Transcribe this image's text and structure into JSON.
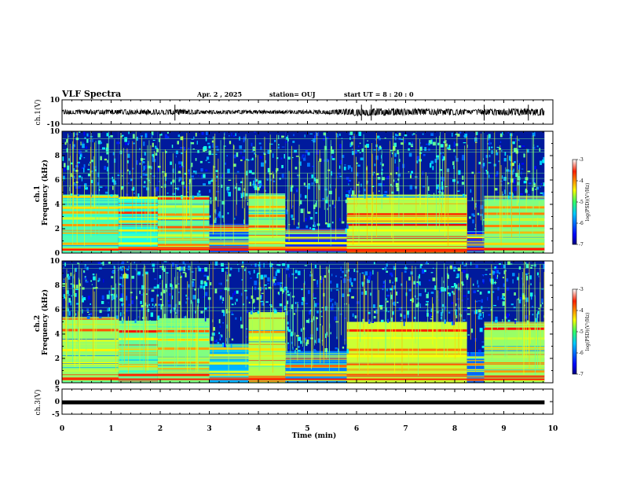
{
  "header": {
    "title": "VLF Spectra",
    "date": "Apr. 2 , 2025",
    "station": "station= OUJ",
    "start": "start  UT =  8 : 20 : 0"
  },
  "chart_data": [
    {
      "type": "line",
      "panel": "waveform-ch1",
      "ylabel": "ch.1(V)",
      "ylim": [
        -10,
        10
      ],
      "yticks": [
        "10",
        "-10"
      ],
      "amplitude_envelope": {
        "x_min": [
          0,
          1.5,
          2.3,
          3,
          4,
          4.5,
          5,
          5.5,
          6,
          6.5,
          7,
          7.5,
          8,
          8.3,
          8.6,
          9,
          9.5,
          9.8
        ],
        "amp_V": [
          1.8,
          2.0,
          2.2,
          1.6,
          1.5,
          1.4,
          1.6,
          1.8,
          3.2,
          3.0,
          2.8,
          2.6,
          2.8,
          1.8,
          2.6,
          2.6,
          2.8,
          2.8
        ]
      },
      "spikes_x_min": [
        2.3,
        6.1,
        6.3,
        8.6,
        9.5
      ]
    },
    {
      "type": "heatmap",
      "panel": "spectrogram-ch1",
      "ylabel": "ch.1\nFrequency (kHz)",
      "yticks": [
        "0",
        "2",
        "4",
        "6",
        "8",
        "10"
      ],
      "ylim": [
        0,
        10
      ],
      "xlim": [
        0,
        10
      ],
      "data_end_min": 9.83,
      "colorbar": {
        "label": "log(PSD)(V²/Hz)",
        "ticks": [
          "-3",
          "-4",
          "-5",
          "-6",
          "-7"
        ],
        "range": [
          -7,
          -3
        ],
        "colormap": "jet"
      },
      "segments_min": [
        {
          "x0": 0.0,
          "x1": 1.15,
          "top_khz": 4.8,
          "level": -5.2
        },
        {
          "x0": 1.15,
          "x1": 1.95,
          "top_khz": 4.6,
          "level": -5.4
        },
        {
          "x0": 1.95,
          "x1": 3.0,
          "top_khz": 4.7,
          "level": -5.1
        },
        {
          "x0": 3.0,
          "x1": 3.8,
          "top_khz": 2.4,
          "level": -6.2
        },
        {
          "x0": 3.8,
          "x1": 4.55,
          "top_khz": 4.9,
          "level": -5.0
        },
        {
          "x0": 4.55,
          "x1": 5.8,
          "top_khz": 2.0,
          "level": -6.3
        },
        {
          "x0": 5.8,
          "x1": 8.25,
          "top_khz": 4.8,
          "level": -4.8
        },
        {
          "x0": 8.25,
          "x1": 8.6,
          "top_khz": 1.8,
          "level": -6.4
        },
        {
          "x0": 8.6,
          "x1": 9.83,
          "top_khz": 4.7,
          "level": -5.0
        }
      ],
      "bands_khz": [
        {
          "f": 4.5,
          "level": -4.2
        },
        {
          "f": 3.7,
          "level": -4.5
        },
        {
          "f": 3.2,
          "level": -4.0
        },
        {
          "f": 2.7,
          "level": -4.6
        },
        {
          "f": 2.2,
          "level": -3.8
        },
        {
          "f": 1.8,
          "level": -4.4
        },
        {
          "f": 1.3,
          "level": -4.9
        },
        {
          "f": 0.8,
          "level": -4.3
        },
        {
          "f": 0.3,
          "level": -3.7
        }
      ],
      "spheric_strength_by_minute": [
        0.6,
        0.7,
        0.6,
        0.5,
        0.6,
        0.6,
        0.7,
        0.6,
        0.6,
        0.6
      ]
    },
    {
      "type": "heatmap",
      "panel": "spectrogram-ch2",
      "ylabel": "ch.2\nFrequency (kHz)",
      "yticks": [
        "0",
        "2",
        "4",
        "6",
        "8",
        "10"
      ],
      "ylim": [
        0,
        10
      ],
      "xlim": [
        0,
        10
      ],
      "data_end_min": 9.83,
      "colorbar": {
        "label": "log(PSD)(V²/Hz)",
        "ticks": [
          "-3",
          "-4",
          "-5",
          "-6",
          "-7"
        ],
        "range": [
          -7,
          -3
        ],
        "colormap": "jet"
      },
      "segments_min": [
        {
          "x0": 0.0,
          "x1": 1.15,
          "top_khz": 5.4,
          "level": -4.9
        },
        {
          "x0": 1.15,
          "x1": 1.95,
          "top_khz": 5.1,
          "level": -5.1
        },
        {
          "x0": 1.95,
          "x1": 3.0,
          "top_khz": 5.3,
          "level": -5.0
        },
        {
          "x0": 3.0,
          "x1": 3.8,
          "top_khz": 3.2,
          "level": -5.8
        },
        {
          "x0": 3.8,
          "x1": 4.55,
          "top_khz": 5.8,
          "level": -4.8
        },
        {
          "x0": 4.55,
          "x1": 5.8,
          "top_khz": 2.6,
          "level": -6.0
        },
        {
          "x0": 5.8,
          "x1": 8.25,
          "top_khz": 5.0,
          "level": -4.7
        },
        {
          "x0": 8.25,
          "x1": 8.6,
          "top_khz": 2.5,
          "level": -6.1
        },
        {
          "x0": 8.6,
          "x1": 9.83,
          "top_khz": 5.0,
          "level": -4.9
        }
      ],
      "bands_khz": [
        {
          "f": 4.3,
          "level": -3.7
        },
        {
          "f": 3.6,
          "level": -4.6
        },
        {
          "f": 2.8,
          "level": -4.1
        },
        {
          "f": 2.1,
          "level": -4.8
        },
        {
          "f": 1.5,
          "level": -4.2
        },
        {
          "f": 1.0,
          "level": -4.5
        },
        {
          "f": 0.5,
          "level": -3.9
        }
      ],
      "spheric_strength_by_minute": [
        0.7,
        0.7,
        0.7,
        0.6,
        0.7,
        0.7,
        0.7,
        0.6,
        0.7,
        0.7
      ]
    },
    {
      "type": "line",
      "panel": "waveform-ch3",
      "ylabel": "ch.3(V)",
      "ylim": [
        -5,
        5
      ],
      "yticks": [
        "5",
        "0",
        "-5"
      ],
      "constant_value_V": -0.3,
      "xlabel": "Time (min)",
      "xticks": [
        "0",
        "1",
        "2",
        "3",
        "4",
        "5",
        "6",
        "7",
        "8",
        "9",
        "10"
      ],
      "xlim": [
        0,
        10
      ]
    }
  ]
}
